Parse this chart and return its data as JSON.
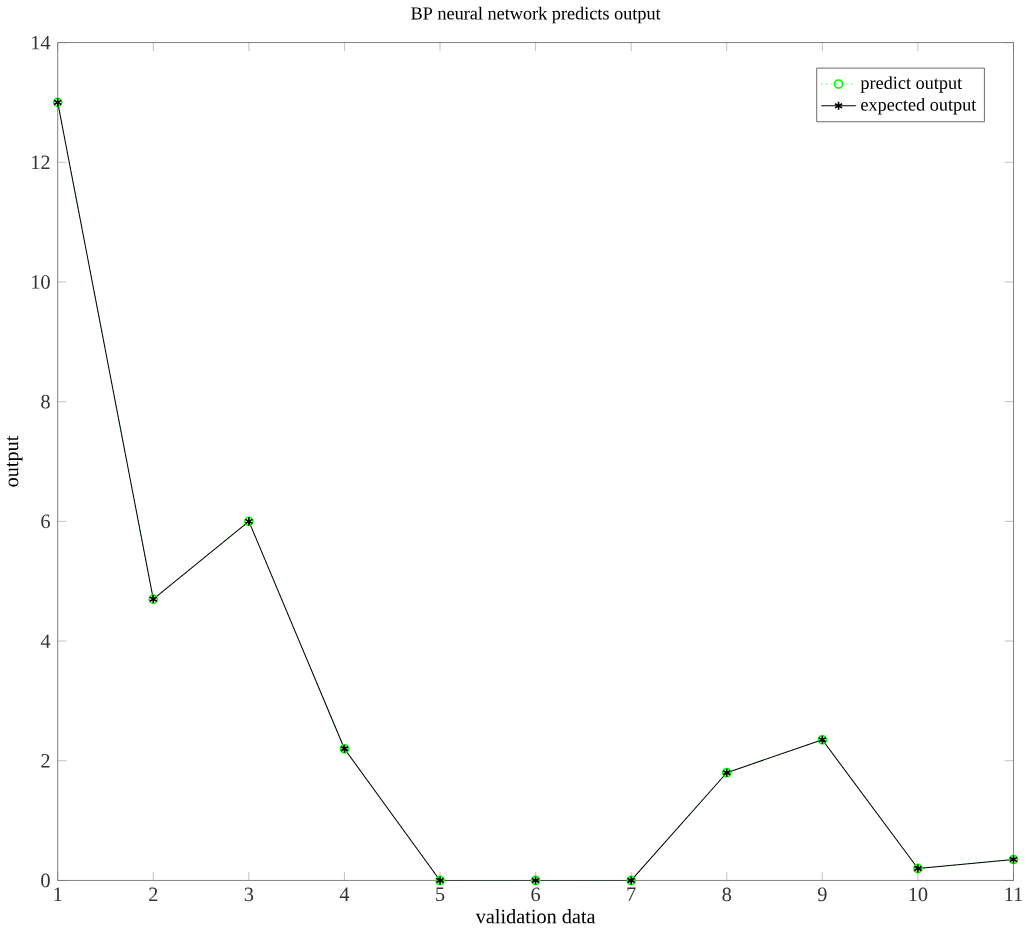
{
  "chart_data": {
    "type": "line",
    "title": "BP neural network predicts output",
    "xlabel": "validation data",
    "ylabel": "output",
    "x": [
      1,
      2,
      3,
      4,
      5,
      6,
      7,
      8,
      9,
      10,
      11
    ],
    "series": [
      {
        "name": "predict output",
        "color": "#00ff00",
        "marker": "circle",
        "line_style": "dotted",
        "values": [
          13,
          4.7,
          6,
          2.2,
          0,
          0,
          0,
          1.8,
          2.35,
          0.2,
          0.35
        ]
      },
      {
        "name": "expected output",
        "color": "#000000",
        "marker": "cross",
        "line_style": "solid",
        "values": [
          13,
          4.7,
          6,
          2.2,
          0,
          0,
          0,
          1.8,
          2.35,
          0.2,
          0.35
        ]
      }
    ],
    "xlim": [
      1,
      11
    ],
    "xticks": [
      1,
      2,
      3,
      4,
      5,
      6,
      7,
      8,
      9,
      10,
      11
    ],
    "ylim": [
      0,
      14
    ],
    "yticks": [
      0,
      2,
      4,
      6,
      8,
      10,
      12,
      14
    ],
    "legend": "top right"
  }
}
